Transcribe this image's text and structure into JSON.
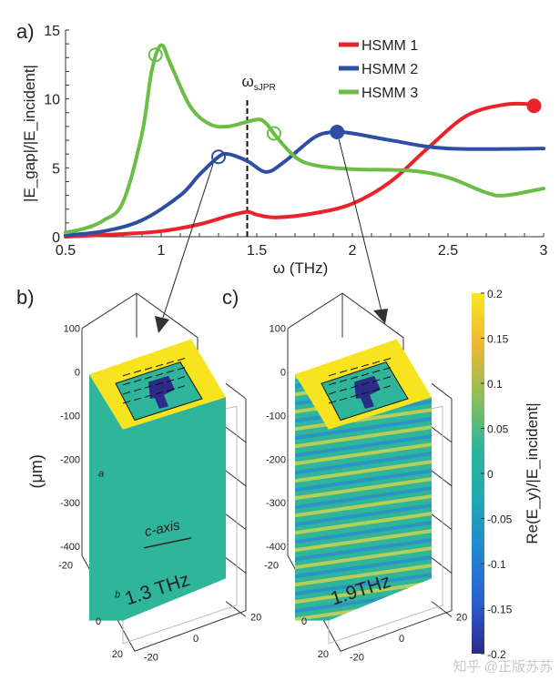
{
  "chart_data": [
    {
      "type": "line",
      "panel_label": "a)",
      "xlabel": "ω (THz)",
      "ylabel": "|E_gap|/|E_incident|",
      "xlim": [
        0.5,
        3
      ],
      "ylim": [
        0,
        15
      ],
      "xticks": [
        "0.5",
        "1",
        "1.5",
        "2",
        "2.5",
        "3"
      ],
      "yticks": [
        "0",
        "5",
        "10",
        "15"
      ],
      "legend_position": "top-right",
      "grid": false,
      "annotation": {
        "label": "ω",
        "sub": "sJPR",
        "x": 1.45,
        "style": "dashed vertical line"
      },
      "series": [
        {
          "name": "HSMM 1",
          "color": "#e8232a",
          "x": [
            0.5,
            0.8,
            1.0,
            1.2,
            1.35,
            1.45,
            1.5,
            1.6,
            1.8,
            2.0,
            2.2,
            2.4,
            2.6,
            2.8,
            2.95
          ],
          "y": [
            0,
            0.2,
            0.4,
            0.9,
            1.5,
            1.8,
            1.6,
            1.4,
            1.7,
            2.4,
            4.0,
            6.5,
            8.8,
            9.6,
            9.6
          ],
          "markers": [
            {
              "x": 2.95,
              "y": 9.5,
              "filled": true
            }
          ]
        },
        {
          "name": "HSMM 2",
          "color": "#2d4ea2",
          "x": [
            0.5,
            0.7,
            0.9,
            1.1,
            1.2,
            1.3,
            1.35,
            1.45,
            1.55,
            1.65,
            1.8,
            1.9,
            2.0,
            2.2,
            2.5,
            3.0
          ],
          "y": [
            0.1,
            0.4,
            1.2,
            3.0,
            4.5,
            5.8,
            6.0,
            5.5,
            4.7,
            5.5,
            7.2,
            7.6,
            7.5,
            7.0,
            6.4,
            6.4
          ],
          "markers": [
            {
              "x": 1.3,
              "y": 5.8,
              "filled": false
            },
            {
              "x": 1.92,
              "y": 7.6,
              "filled": true
            }
          ]
        },
        {
          "name": "HSMM 3",
          "color": "#6abd45",
          "x": [
            0.5,
            0.6,
            0.7,
            0.8,
            0.9,
            0.95,
            1.0,
            1.05,
            1.15,
            1.25,
            1.35,
            1.5,
            1.55,
            1.6,
            1.7,
            1.8,
            2.0,
            2.3,
            2.5,
            2.7,
            2.8,
            3.0
          ],
          "y": [
            0.3,
            0.6,
            1.2,
            2.5,
            7.5,
            12.0,
            13.9,
            12.5,
            9.5,
            8.2,
            8.0,
            8.5,
            8.2,
            7.3,
            5.8,
            5.2,
            4.9,
            4.8,
            4.3,
            3.2,
            3.0,
            3.5
          ],
          "markers": [
            {
              "x": 0.97,
              "y": 13.2,
              "filled": false
            },
            {
              "x": 1.59,
              "y": 7.5,
              "filled": false
            }
          ]
        }
      ]
    },
    {
      "type": "heatmap",
      "panel_label": "b)",
      "frequency_label": "1.3 THz",
      "axis_unit_label": "(μm)",
      "z_ticks": [
        "100",
        "0",
        "-100",
        "-200",
        "-300",
        "-400"
      ],
      "xy_ticks": [
        "-20",
        "0",
        "20"
      ],
      "axis_annotations": [
        "c-axis",
        "a",
        "b"
      ]
    },
    {
      "type": "heatmap",
      "panel_label": "c)",
      "frequency_label": "1.9THz",
      "z_ticks": [
        "100",
        "0",
        "-100",
        "-200",
        "-300",
        "-400"
      ],
      "xy_ticks": [
        "-20",
        "0",
        "20"
      ]
    }
  ],
  "colorbar": {
    "label": "Re(E_y)/|E_incident|",
    "ticks": [
      "0.2",
      "0.15",
      "0.1",
      "0.05",
      "0",
      "-0.05",
      "-0.1",
      "-0.15",
      "-0.2"
    ],
    "colors": [
      "#f9e720",
      "#f0b631",
      "#8fbf5a",
      "#2fb59a",
      "#20a9b3",
      "#2386d0",
      "#2a5fd0",
      "#2b2c8a"
    ]
  },
  "watermark": "知乎 @正版苏苏"
}
